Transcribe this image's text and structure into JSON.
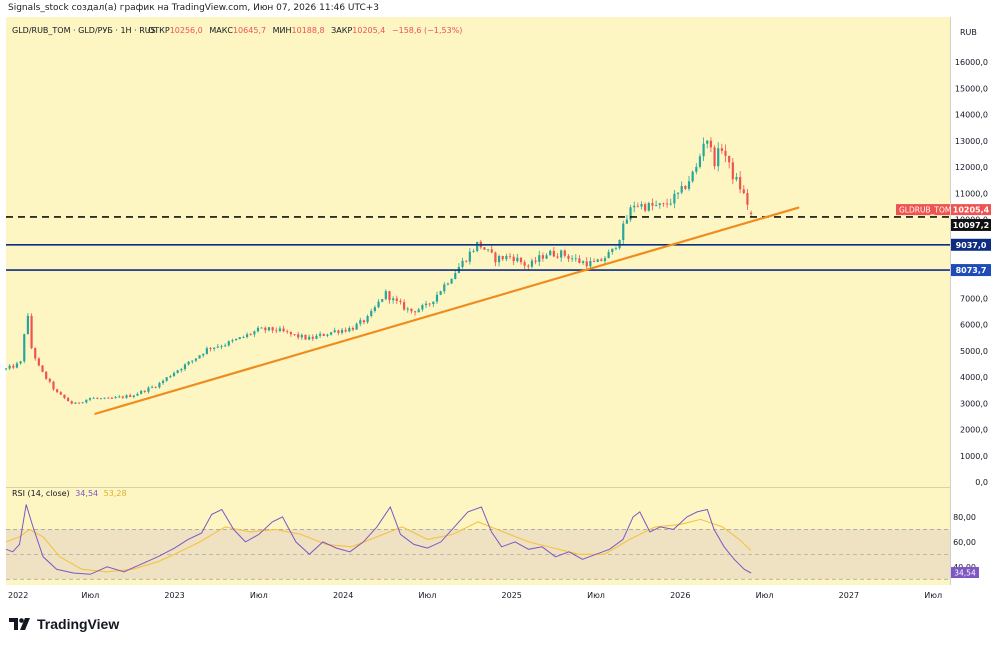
{
  "byline": "Signals_stock создал(а) график на TradingView.com, Июн 07, 2026 11:46 UTC+3",
  "brand": {
    "name": "TradingView"
  },
  "colors": {
    "background": "#fdf6c3",
    "rsi_band": "#efe2c2",
    "candle_up": "#26a69a",
    "candle_down": "#ef5350",
    "trendline": "#f08c1e",
    "horizontal_line": "#0d2c82",
    "rsi_line": "#7e57c2",
    "rsi_ma": "#f5c342"
  },
  "chart_data": [
    {
      "type": "candlestick",
      "panel": "price",
      "legend": {
        "symbol": "GLD/RUB_TOM · GLD/РУБ · 1H · RUS",
        "open_label": "ОТКР",
        "open": "10256,0",
        "high_label": "МАКС",
        "high": "10645,7",
        "low_label": "МИН",
        "low": "10188,8",
        "close_label": "ЗАКР",
        "close": "10205,4",
        "change": "−158,6 (−1,53%)"
      },
      "currency": "RUB",
      "ylim": [
        0,
        16800
      ],
      "xlim": [
        2022.0,
        2027.6
      ],
      "y_ticks": [
        "0,0",
        "1000,0",
        "2000,0",
        "3000,0",
        "4000,0",
        "5000,0",
        "6000,0",
        "7000,0",
        "8000,0",
        "9000,0",
        "10000,0",
        "11000,0",
        "12000,0",
        "13000,0",
        "14000,0",
        "15000,0",
        "16000,0"
      ],
      "x_ticks": [
        {
          "t": 2022.0,
          "label": "2022"
        },
        {
          "t": 2022.5,
          "label": "Июл"
        },
        {
          "t": 2023.0,
          "label": "2023"
        },
        {
          "t": 2023.5,
          "label": "Июл"
        },
        {
          "t": 2024.0,
          "label": "2024"
        },
        {
          "t": 2024.5,
          "label": "Июл"
        },
        {
          "t": 2025.0,
          "label": "2025"
        },
        {
          "t": 2025.5,
          "label": "Июл"
        },
        {
          "t": 2026.0,
          "label": "2026"
        },
        {
          "t": 2026.5,
          "label": "Июл"
        },
        {
          "t": 2027.0,
          "label": "2027"
        },
        {
          "t": 2027.5,
          "label": "Июл"
        }
      ],
      "close_path": [
        [
          2022.0,
          4300
        ],
        [
          2022.06,
          4450
        ],
        [
          2022.1,
          4600
        ],
        [
          2022.12,
          7200
        ],
        [
          2022.14,
          5300
        ],
        [
          2022.2,
          4300
        ],
        [
          2022.3,
          3400
        ],
        [
          2022.4,
          2950
        ],
        [
          2022.5,
          3200
        ],
        [
          2022.6,
          3150
        ],
        [
          2022.75,
          3300
        ],
        [
          2022.9,
          3700
        ],
        [
          2023.0,
          4200
        ],
        [
          2023.1,
          4600
        ],
        [
          2023.2,
          5100
        ],
        [
          2023.3,
          5250
        ],
        [
          2023.4,
          5500
        ],
        [
          2023.5,
          5800
        ],
        [
          2023.6,
          5800
        ],
        [
          2023.7,
          5600
        ],
        [
          2023.8,
          5450
        ],
        [
          2023.95,
          5750
        ],
        [
          2024.05,
          5850
        ],
        [
          2024.15,
          6250
        ],
        [
          2024.25,
          7200
        ],
        [
          2024.3,
          6900
        ],
        [
          2024.4,
          6500
        ],
        [
          2024.5,
          6700
        ],
        [
          2024.6,
          7500
        ],
        [
          2024.7,
          8300
        ],
        [
          2024.8,
          9100
        ],
        [
          2024.9,
          8500
        ],
        [
          2025.0,
          8600
        ],
        [
          2025.1,
          8200
        ],
        [
          2025.2,
          8700
        ],
        [
          2025.3,
          8700
        ],
        [
          2025.4,
          8400
        ],
        [
          2025.5,
          8300
        ],
        [
          2025.6,
          8800
        ],
        [
          2025.65,
          9500
        ],
        [
          2025.72,
          10600
        ],
        [
          2025.8,
          10500
        ],
        [
          2025.9,
          10500
        ],
        [
          2026.0,
          11000
        ],
        [
          2026.1,
          12000
        ],
        [
          2026.15,
          13300
        ],
        [
          2026.2,
          12200
        ],
        [
          2026.25,
          12800
        ],
        [
          2026.3,
          11800
        ],
        [
          2026.35,
          11300
        ],
        [
          2026.4,
          10600
        ],
        [
          2026.42,
          10205
        ]
      ],
      "horizontal_levels": [
        {
          "value": 10097.2,
          "label": "10097,2",
          "style": "dashed",
          "color": "#111111"
        },
        {
          "value": 9037.0,
          "label": "9037,0",
          "style": "solid",
          "color": "#0d2c82"
        },
        {
          "value": 8073.7,
          "label": "8073,7",
          "style": "solid",
          "color": "#0d2c82"
        }
      ],
      "trendline": {
        "start": [
          2022.53,
          2600
        ],
        "end": [
          2026.7,
          10450
        ]
      },
      "price_label": {
        "name": "GLDRUB_TOM",
        "value": "10205,4"
      }
    },
    {
      "type": "line",
      "panel": "indicator",
      "legend": {
        "name": "RSI",
        "params": "(14, close)",
        "value": "34,54",
        "ma_value": "53,28"
      },
      "ylim": [
        27,
        100
      ],
      "y_ticks": [
        "40,00",
        "60,00",
        "80,00"
      ],
      "band": [
        30,
        70
      ],
      "mid": 50,
      "series": [
        {
          "name": "RSI",
          "values": [
            [
              2022.0,
              54
            ],
            [
              2022.04,
              52
            ],
            [
              2022.08,
              58
            ],
            [
              2022.12,
              90
            ],
            [
              2022.16,
              72
            ],
            [
              2022.22,
              48
            ],
            [
              2022.3,
              38
            ],
            [
              2022.4,
              35
            ],
            [
              2022.5,
              34
            ],
            [
              2022.6,
              40
            ],
            [
              2022.7,
              36
            ],
            [
              2022.8,
              42
            ],
            [
              2022.9,
              48
            ],
            [
              2023.0,
              55
            ],
            [
              2023.08,
              62
            ],
            [
              2023.16,
              67
            ],
            [
              2023.22,
              82
            ],
            [
              2023.28,
              86
            ],
            [
              2023.35,
              70
            ],
            [
              2023.42,
              60
            ],
            [
              2023.5,
              66
            ],
            [
              2023.58,
              76
            ],
            [
              2023.64,
              80
            ],
            [
              2023.72,
              60
            ],
            [
              2023.8,
              50
            ],
            [
              2023.88,
              60
            ],
            [
              2023.96,
              55
            ],
            [
              2024.04,
              52
            ],
            [
              2024.12,
              60
            ],
            [
              2024.2,
              72
            ],
            [
              2024.28,
              88
            ],
            [
              2024.34,
              66
            ],
            [
              2024.42,
              58
            ],
            [
              2024.5,
              55
            ],
            [
              2024.58,
              60
            ],
            [
              2024.66,
              72
            ],
            [
              2024.74,
              84
            ],
            [
              2024.82,
              88
            ],
            [
              2024.88,
              68
            ],
            [
              2024.94,
              56
            ],
            [
              2025.02,
              60
            ],
            [
              2025.1,
              54
            ],
            [
              2025.18,
              56
            ],
            [
              2025.26,
              48
            ],
            [
              2025.34,
              52
            ],
            [
              2025.42,
              46
            ],
            [
              2025.5,
              50
            ],
            [
              2025.58,
              54
            ],
            [
              2025.66,
              62
            ],
            [
              2025.72,
              80
            ],
            [
              2025.76,
              84
            ],
            [
              2025.82,
              68
            ],
            [
              2025.88,
              72
            ],
            [
              2025.96,
              70
            ],
            [
              2026.04,
              80
            ],
            [
              2026.1,
              84
            ],
            [
              2026.16,
              86
            ],
            [
              2026.2,
              70
            ],
            [
              2026.26,
              56
            ],
            [
              2026.32,
              46
            ],
            [
              2026.38,
              38
            ],
            [
              2026.42,
              35
            ]
          ]
        },
        {
          "name": "RSI-MA",
          "values": [
            [
              2022.0,
              60
            ],
            [
              2022.08,
              64
            ],
            [
              2022.14,
              70
            ],
            [
              2022.22,
              64
            ],
            [
              2022.32,
              48
            ],
            [
              2022.45,
              38
            ],
            [
              2022.6,
              36
            ],
            [
              2022.75,
              38
            ],
            [
              2022.9,
              44
            ],
            [
              2023.0,
              50
            ],
            [
              2023.15,
              60
            ],
            [
              2023.3,
              72
            ],
            [
              2023.45,
              68
            ],
            [
              2023.6,
              70
            ],
            [
              2023.75,
              66
            ],
            [
              2023.9,
              58
            ],
            [
              2024.05,
              56
            ],
            [
              2024.2,
              64
            ],
            [
              2024.35,
              72
            ],
            [
              2024.5,
              62
            ],
            [
              2024.65,
              66
            ],
            [
              2024.8,
              76
            ],
            [
              2024.95,
              68
            ],
            [
              2025.1,
              60
            ],
            [
              2025.25,
              55
            ],
            [
              2025.4,
              50
            ],
            [
              2025.55,
              50
            ],
            [
              2025.7,
              62
            ],
            [
              2025.85,
              72
            ],
            [
              2026.0,
              74
            ],
            [
              2026.12,
              78
            ],
            [
              2026.25,
              72
            ],
            [
              2026.35,
              62
            ],
            [
              2026.42,
              53
            ]
          ]
        }
      ]
    }
  ]
}
